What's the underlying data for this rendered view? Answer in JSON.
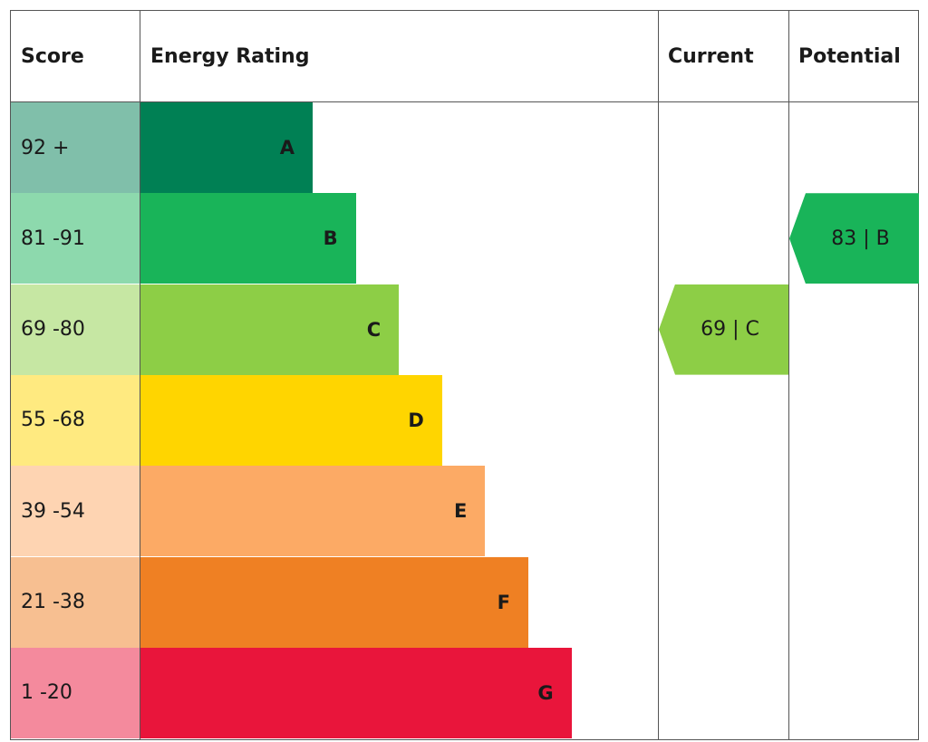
{
  "headers": {
    "score": "Score",
    "rating": "Energy Rating",
    "current": "Current",
    "potential": "Potential"
  },
  "chart_data": {
    "type": "bar",
    "bands": [
      {
        "score": "92 +",
        "letter": "A",
        "color": "#008054",
        "light": "#80bfaa"
      },
      {
        "score": "81 -91",
        "letter": "B",
        "color": "#19b459",
        "light": "#8dd9ad"
      },
      {
        "score": "69 -80",
        "letter": "C",
        "color": "#8dce46",
        "light": "#c6e7a3"
      },
      {
        "score": "55 -68",
        "letter": "D",
        "color": "#ffd500",
        "light": "#ffea80"
      },
      {
        "score": "39 -54",
        "letter": "E",
        "color": "#fcaa65",
        "light": "#fed4b2"
      },
      {
        "score": "21 -38",
        "letter": "F",
        "color": "#ef8023",
        "light": "#f7bf91"
      },
      {
        "score": "1 -20",
        "letter": "G",
        "color": "#e9153b",
        "light": "#f48a9d"
      }
    ],
    "current": {
      "label": "69 | C",
      "band": "C",
      "color": "#8dce46"
    },
    "potential": {
      "label": "83 | B",
      "band": "B",
      "color": "#19b459"
    }
  }
}
